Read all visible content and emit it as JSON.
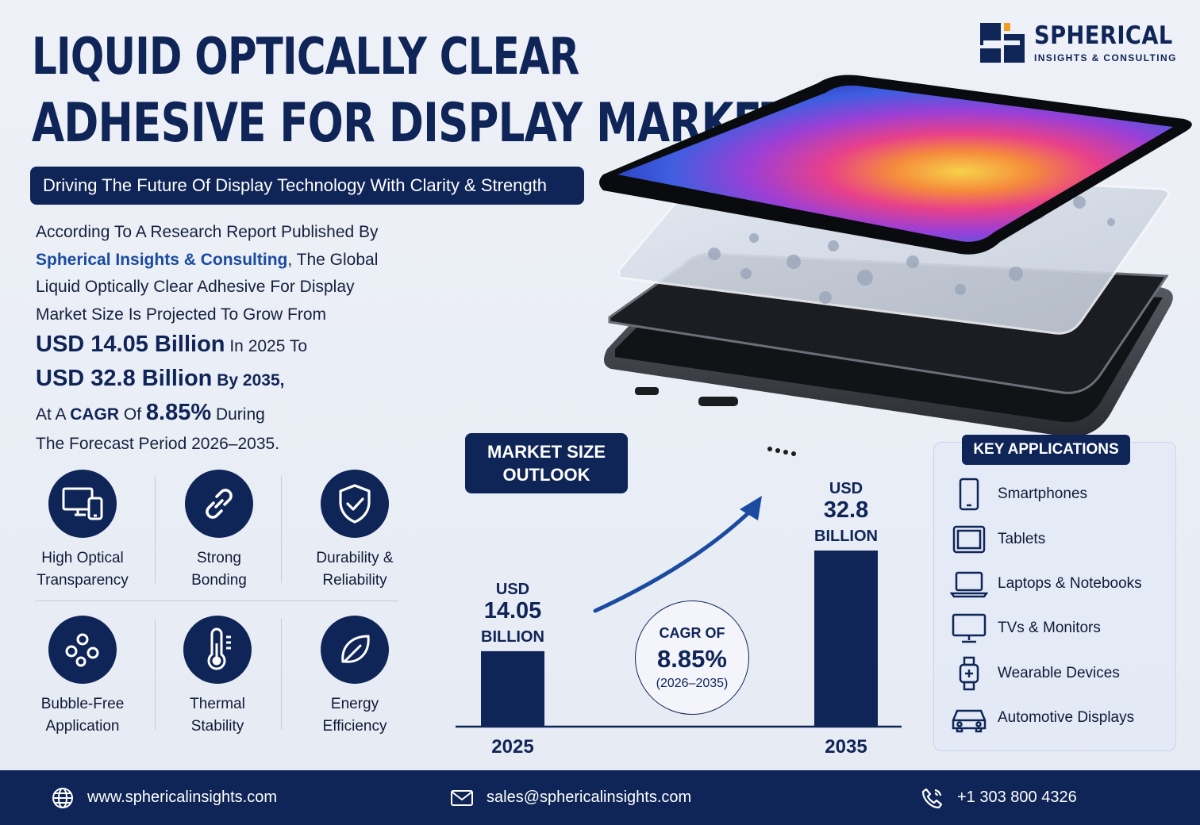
{
  "header": {
    "title_line1": "LIQUID OPTICALLY CLEAR",
    "title_line2": "ADHESIVE FOR DISPLAY MARKET",
    "subtitle": "Driving The Future Of Display Technology With Clarity & Strength"
  },
  "logo": {
    "name": "SPHERICAL",
    "tagline": "INSIGHTS & CONSULTING"
  },
  "intro": {
    "l1": "According To A Research Report Published By",
    "brand": "Spherical Insights & Consulting",
    "l2_tail": ", The Global",
    "l3": "Liquid Optically Clear Adhesive For Display",
    "l4": "Market Size Is Projected To Grow From",
    "value_2025": "USD 14.05 Billion",
    "l5_tail": " In 2025 To",
    "value_2035": "USD 32.8 Billion",
    "l6_tail": " By 2035,",
    "l7_a": "At A ",
    "l7_cagr": "CAGR",
    "l7_of": " Of ",
    "l7_pct": "8.85%",
    "l7_tail": " During",
    "l8": "The Forecast Period 2026–2035."
  },
  "features": [
    {
      "line1": "High Optical",
      "line2": "Transparency",
      "icon": "devices-icon"
    },
    {
      "line1": "Strong",
      "line2": "Bonding",
      "icon": "link-icon"
    },
    {
      "line1": "Durability &",
      "line2": "Reliability",
      "icon": "shield-check-icon"
    },
    {
      "line1": "Bubble-Free",
      "line2": "Application",
      "icon": "bubbles-icon"
    },
    {
      "line1": "Thermal",
      "line2": "Stability",
      "icon": "thermometer-icon"
    },
    {
      "line1": "Energy",
      "line2": "Efficiency",
      "icon": "leaf-icon"
    }
  ],
  "outlook": {
    "line1": "MARKET SIZE",
    "line2": "OUTLOOK"
  },
  "cagr": {
    "label": "CAGR OF",
    "value": "8.85%",
    "period": "(2026–2035)"
  },
  "chart_data": {
    "type": "bar",
    "categories": [
      "2025",
      "2035"
    ],
    "values": [
      14.05,
      32.8
    ],
    "unit": "USD Billion",
    "labels": [
      {
        "top": "USD",
        "value": "14.05",
        "bottom": "BILLION"
      },
      {
        "top": "USD",
        "value": "32.8",
        "bottom": "BILLION"
      }
    ],
    "ylim": [
      0,
      32.8
    ]
  },
  "applications": {
    "heading": "KEY APPLICATIONS",
    "items": [
      {
        "label": "Smartphones",
        "icon": "smartphone-icon"
      },
      {
        "label": "Tablets",
        "icon": "tablet-icon"
      },
      {
        "label": "Laptops & Notebooks",
        "icon": "laptop-icon"
      },
      {
        "label": "TVs & Monitors",
        "icon": "monitor-icon"
      },
      {
        "label": "Wearable Devices",
        "icon": "smartwatch-icon"
      },
      {
        "label": "Automotive Displays",
        "icon": "car-icon"
      }
    ]
  },
  "footer": {
    "website": "www.sphericalinsights.com",
    "email": "sales@sphericalinsights.com",
    "phone": "+1 303 800 4326"
  },
  "colors": {
    "navy": "#0f2457",
    "brand_blue": "#1a4ba0",
    "background": "#eef1f7",
    "logo_orange": "#f0a020"
  }
}
